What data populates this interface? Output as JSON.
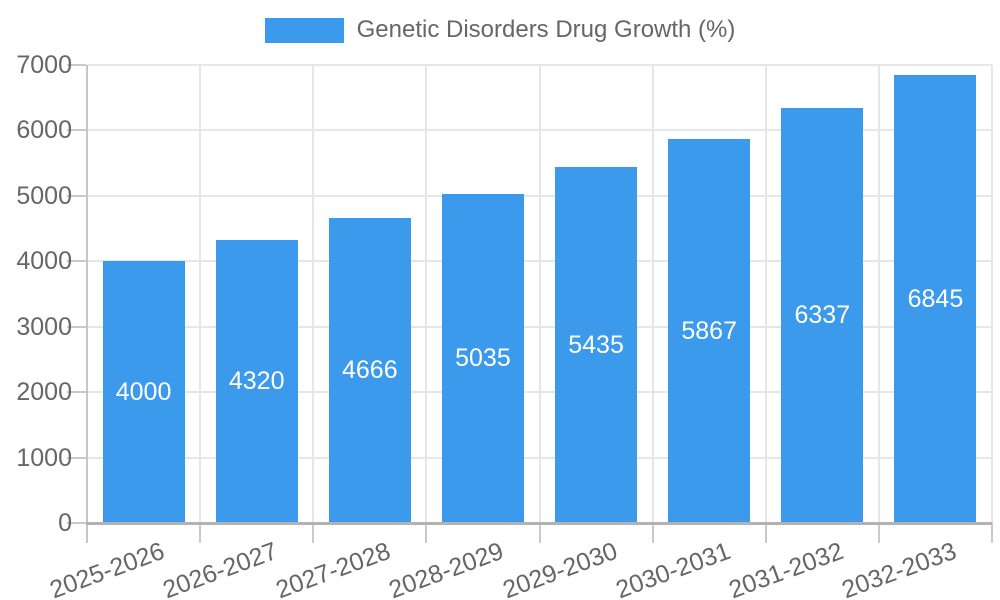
{
  "legend": {
    "label": "Genetic Disorders Drug Growth (%)"
  },
  "chart_data": {
    "type": "bar",
    "title": "Genetic Disorders Drug Growth (%)",
    "categories": [
      "2025-2026",
      "2026-2027",
      "2027-2028",
      "2028-2029",
      "2029-2030",
      "2030-2031",
      "2031-2032",
      "2032-2033"
    ],
    "values": [
      4000,
      4320,
      4666,
      5035,
      5435,
      5867,
      6337,
      6845
    ],
    "xlabel": "",
    "ylabel": "",
    "ylim": [
      0,
      7000
    ],
    "ytick_step": 1000,
    "yticks": [
      "0",
      "1000",
      "2000",
      "3000",
      "4000",
      "5000",
      "6000",
      "7000"
    ],
    "grid": "both",
    "legend_position": "top",
    "bar_color": "#3c9aec",
    "bar_label_color": "#ffffff",
    "axis_text_color": "#666666",
    "gridline_color": "#e6e6e6"
  }
}
